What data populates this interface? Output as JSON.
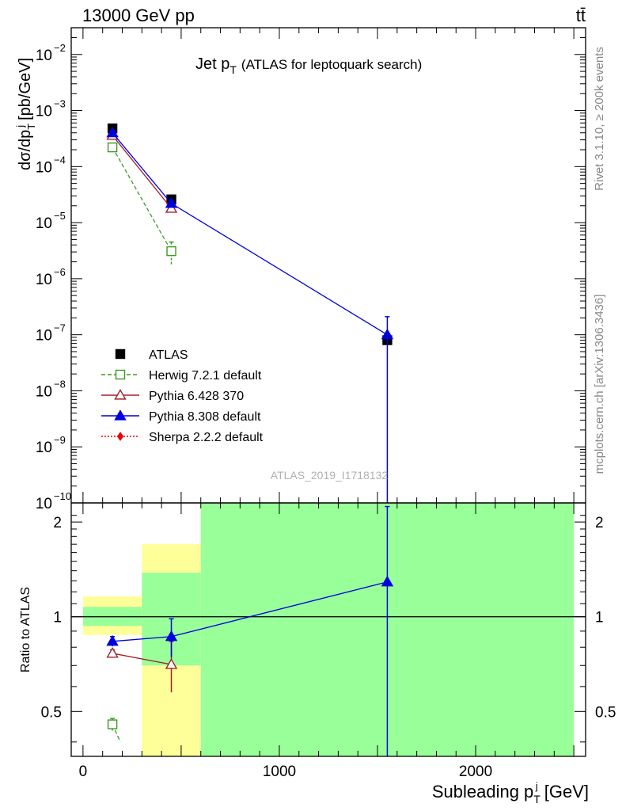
{
  "header": {
    "left": "13000 GeV pp",
    "right": "tt̄"
  },
  "side_labels": {
    "rivet": "Rivet 3.1.10, ≥ 200k events",
    "mcplots": "mcplots.cern.ch [arXiv:1306.3436]"
  },
  "watermark": "ATLAS_2019_I1718132",
  "colors": {
    "atlas": "#000000",
    "herwig": "#3a9a22",
    "pythia6": "#a0202c",
    "pythia8": "#0000dd",
    "sherpa": "#ee0000",
    "band_inner": "#99ff99",
    "band_outer": "#ffff99"
  },
  "chart_data": [
    {
      "type": "scatter",
      "panel": "main",
      "title_main": "Jet p",
      "title_sub": "T",
      "title_rest": "(ATLAS for leptoquark search)",
      "ylabel": "dσ/dp",
      "ylabel_sub": "T",
      "ylabel_sup": "j",
      "ylabel_unit": "[pb/GeV]",
      "yscale": "log",
      "ylim": [
        1e-10,
        0.03
      ],
      "xlim": [
        -60,
        2560
      ],
      "ytick_exponents": [
        -10,
        -9,
        -8,
        -7,
        -6,
        -5,
        -4,
        -3,
        -2
      ],
      "grid": false,
      "legend_position": "bottom-left",
      "series": [
        {
          "name": "ATLAS",
          "key": "atlas",
          "marker": "filled-square",
          "line": "none",
          "x": [
            150,
            450,
            1550
          ],
          "y": [
            0.00048,
            2.6e-05,
            8e-08
          ],
          "yerr_low": [
            null,
            null,
            null
          ],
          "yerr_high": [
            null,
            null,
            null
          ]
        },
        {
          "name": "Herwig 7.2.1 default",
          "key": "herwig",
          "marker": "open-square",
          "line": "dashed",
          "x": [
            150,
            450
          ],
          "y": [
            0.00022,
            3.1e-06
          ],
          "yerr_low": [
            null,
            1.8e-06
          ],
          "yerr_high": [
            null,
            4.5e-06
          ]
        },
        {
          "name": "Pythia 6.428 370",
          "key": "pythia6",
          "marker": "open-triangle",
          "line": "solid",
          "x": [
            150,
            450
          ],
          "y": [
            0.00036,
            1.8e-05
          ],
          "yerr_low": [
            null,
            null
          ],
          "yerr_high": [
            null,
            null
          ]
        },
        {
          "name": "Pythia 8.308 default",
          "key": "pythia8",
          "marker": "filled-triangle",
          "line": "solid",
          "x": [
            150,
            450,
            1550
          ],
          "y": [
            0.0004,
            2.2e-05,
            1e-07
          ],
          "yerr_low": [
            null,
            null,
            1e-10
          ],
          "yerr_high": [
            null,
            null,
            2.1e-07
          ]
        },
        {
          "name": "Sherpa 2.2.2 default",
          "key": "sherpa",
          "marker": "filled-diamond",
          "line": "dotted",
          "x": [],
          "y": [],
          "yerr_low": [],
          "yerr_high": []
        }
      ]
    },
    {
      "type": "line",
      "panel": "ratio",
      "ylabel": "Ratio to ATLAS",
      "xlabel": "Subleading p",
      "xlabel_sub": "T",
      "xlabel_sup": "j",
      "xlabel_unit": "[GeV]",
      "xlim": [
        -60,
        2560
      ],
      "ylim": [
        0.36,
        2.3
      ],
      "yscale": "log",
      "xticks": [
        0,
        1000,
        2000
      ],
      "yticks": [
        0.5,
        1,
        2
      ],
      "reference_line": 1,
      "bands": [
        {
          "x_low": 0,
          "x_high": 300,
          "outer_low": 0.875,
          "outer_high": 1.16,
          "inner_low": 0.935,
          "inner_high": 1.075
        },
        {
          "x_low": 300,
          "x_high": 600,
          "outer_low": 0.36,
          "outer_high": 1.7,
          "inner_low": 0.7,
          "inner_high": 1.38
        },
        {
          "x_low": 600,
          "x_high": 2500,
          "outer_low": 0.36,
          "outer_high": 2.3,
          "inner_low": 0.36,
          "inner_high": 2.3
        }
      ],
      "series": [
        {
          "key": "herwig",
          "x": [
            150,
            190
          ],
          "y": [
            0.455,
            0.4
          ],
          "yerr": [
            0.02,
            null
          ]
        },
        {
          "key": "pythia6",
          "x": [
            150,
            450
          ],
          "y": [
            0.765,
            0.705
          ],
          "yerr": [
            0.02,
            0.13
          ]
        },
        {
          "key": "pythia8",
          "x": [
            150,
            450,
            1550
          ],
          "y": [
            0.835,
            0.865,
            1.29
          ],
          "yerr": [
            0.03,
            0.12,
            0.95
          ]
        }
      ]
    }
  ]
}
